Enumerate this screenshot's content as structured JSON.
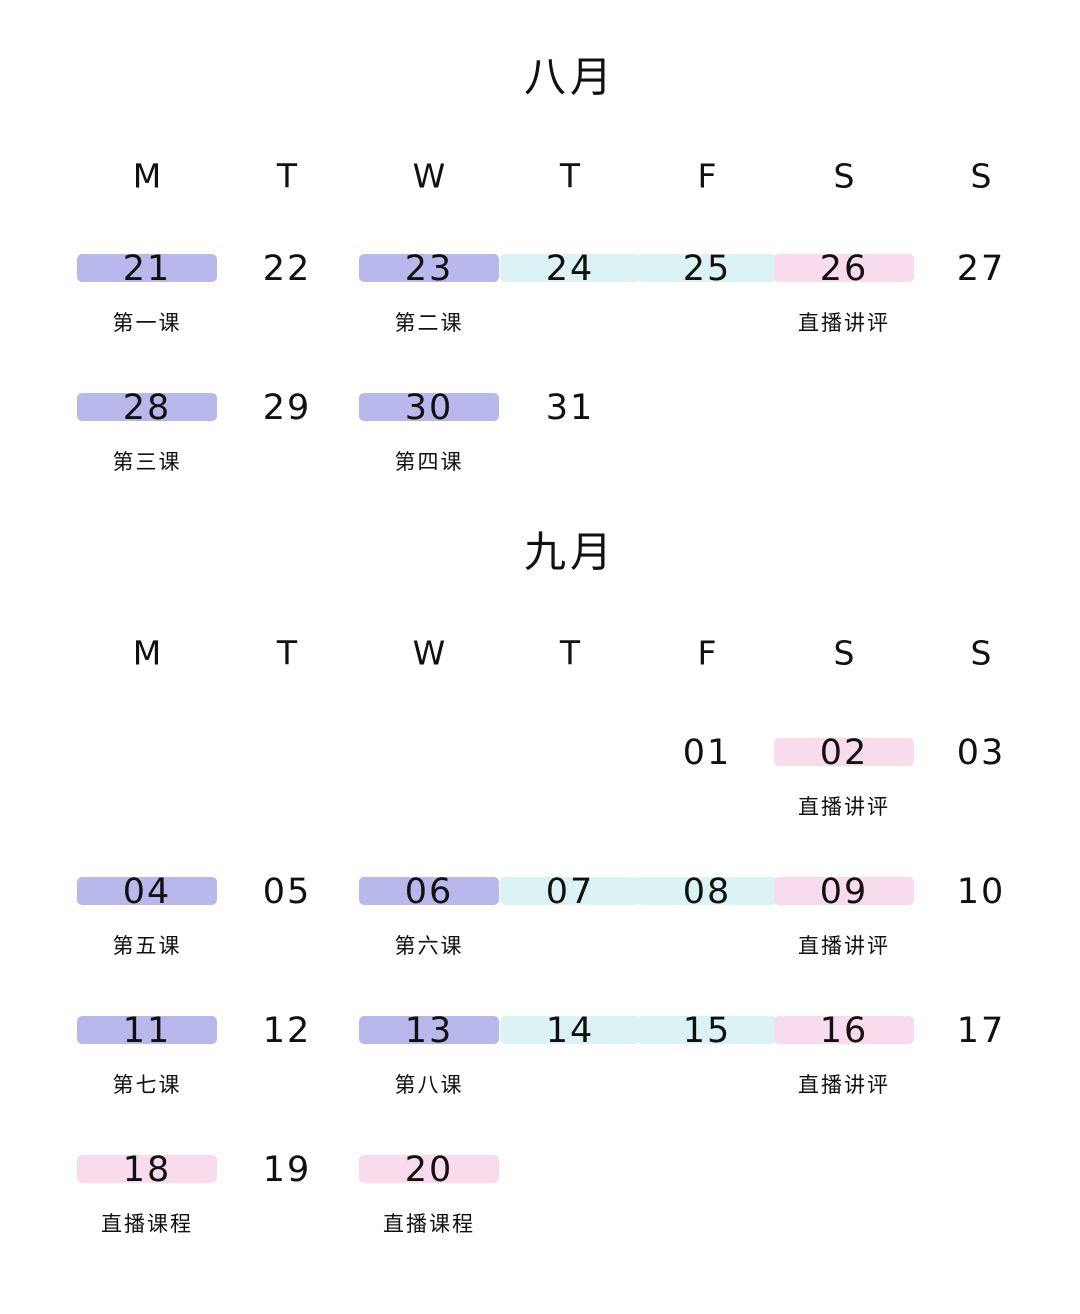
{
  "months": [
    {
      "title": "八月",
      "weekdays": [
        "M",
        "T",
        "W",
        "T",
        "F",
        "S",
        "S"
      ],
      "rows": [
        [
          {
            "day": "21",
            "note": "第一课",
            "color": "#b9b8ec"
          },
          {
            "day": "22"
          },
          {
            "day": "23",
            "note": "第二课",
            "color": "#b9b8ec"
          },
          {
            "day": "24",
            "color": "#dcf3f5",
            "text_color": "#2e4b4f"
          },
          {
            "day": "25",
            "color": "#dcf3f5",
            "text_color": "#2e4b4f"
          },
          {
            "day": "26",
            "note": "直播讲评",
            "color": "#f8dbed"
          },
          {
            "day": "27"
          }
        ],
        [
          {
            "day": "28",
            "note": "第三课",
            "color": "#b9b8ec"
          },
          {
            "day": "29"
          },
          {
            "day": "30",
            "note": "第四课",
            "color": "#b9b8ec"
          },
          {
            "day": "31"
          },
          null,
          null,
          null
        ]
      ]
    },
    {
      "title": "九月",
      "weekdays": [
        "M",
        "T",
        "W",
        "T",
        "F",
        "S",
        "S"
      ],
      "rows": [
        [
          null,
          null,
          null,
          null,
          {
            "day": "01"
          },
          {
            "day": "02",
            "note": "直播讲评",
            "color": "#f8dbed"
          },
          {
            "day": "03"
          }
        ],
        [
          {
            "day": "04",
            "note": "第五课",
            "color": "#b9b8ec"
          },
          {
            "day": "05"
          },
          {
            "day": "06",
            "note": "第六课",
            "color": "#b9b8ec"
          },
          {
            "day": "07",
            "color": "#dcf3f5",
            "text_color": "#2e4b4f"
          },
          {
            "day": "08",
            "color": "#dcf3f5",
            "text_color": "#2e4b4f"
          },
          {
            "day": "09",
            "note": "直播讲评",
            "color": "#f8dbed"
          },
          {
            "day": "10"
          }
        ],
        [
          {
            "day": "11",
            "note": "第七课",
            "color": "#b9b8ec"
          },
          {
            "day": "12"
          },
          {
            "day": "13",
            "note": "第八课",
            "color": "#b9b8ec"
          },
          {
            "day": "14",
            "color": "#dcf3f5",
            "text_color": "#2e4b4f"
          },
          {
            "day": "15",
            "color": "#dcf3f5",
            "text_color": "#2e4b4f"
          },
          {
            "day": "16",
            "note": "直播讲评",
            "color": "#f8dbed"
          },
          {
            "day": "17"
          }
        ],
        [
          {
            "day": "18",
            "note": "直播课程",
            "color": "#f8dbed"
          },
          {
            "day": "19"
          },
          {
            "day": "20",
            "note": "直播课程",
            "color": "#f8dbed"
          },
          null,
          null,
          null,
          null
        ]
      ]
    }
  ]
}
